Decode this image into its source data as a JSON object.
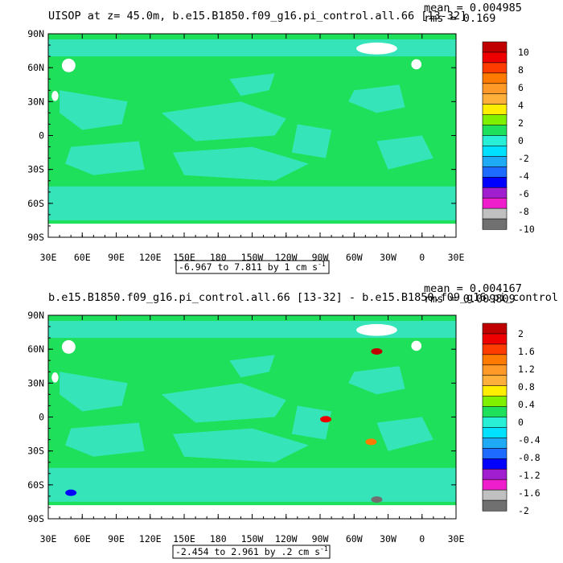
{
  "colors": {
    "land": "#ffffff",
    "ocean_base": "#1ee05a",
    "cool_patch": "#37e6c3",
    "palette": [
      "#707070",
      "#c0c0c0",
      "#ee1ecc",
      "#a01ed0",
      "#0000ff",
      "#1e6cff",
      "#1eaaf5",
      "#00e0ff",
      "#2aefd7",
      "#1ee05a",
      "#7ef000",
      "#ffee00",
      "#ffb03a",
      "#ff9928",
      "#ff7a00",
      "#ff3c00",
      "#ee0000",
      "#c00000"
    ]
  },
  "chart_data": [
    {
      "type": "heatmap",
      "title": "UISOP at z=  45.0m, b.e15.B1850.f09_g16.pi_control.all.66 [13-32]",
      "stats": [
        "mean = 0.004985",
        "rms = 0.169"
      ],
      "y_tick_labels": [
        "90N",
        "60N",
        "30N",
        "0",
        "30S",
        "60S",
        "90S"
      ],
      "x_tick_labels": [
        "30E",
        "60E",
        "90E",
        "120E",
        "150E",
        "180",
        "150W",
        "120W",
        "90W",
        "60W",
        "30W",
        "0",
        "30E"
      ],
      "range_text": "-6.967 to 7.811 by 1 cm s",
      "range_sup": "-1",
      "colorbar_labels": [
        "10",
        "8",
        "6",
        "4",
        "2",
        "0",
        "-2",
        "-4",
        "-6",
        "-8",
        "-10"
      ],
      "value_range": [
        -10,
        10
      ],
      "hotspots": []
    },
    {
      "type": "heatmap",
      "title": "b.e15.B1850.f09_g16.pi_control.all.66 [13-32] - b.e15.B1850.f09_g16.pi_control",
      "stats": [
        "mean = 0.004167",
        "rms = 0.009809"
      ],
      "y_tick_labels": [
        "90N",
        "60N",
        "30N",
        "0",
        "30S",
        "60S",
        "90S"
      ],
      "x_tick_labels": [
        "30E",
        "60E",
        "90E",
        "120E",
        "150E",
        "180",
        "150W",
        "120W",
        "90W",
        "60W",
        "30W",
        "0",
        "30E"
      ],
      "range_text": "-2.454 to 2.961 by .2 cm s",
      "range_sup": "-1",
      "colorbar_labels": [
        "2",
        "1.6",
        "1.2",
        "0.8",
        "0.4",
        "0",
        "-0.4",
        "-0.8",
        "-1.2",
        "-1.6",
        "-2"
      ],
      "value_range": [
        -2,
        2
      ],
      "hotspots": [
        {
          "name": "labrador-sea-anomaly",
          "lon": -40,
          "lat": 58,
          "value": 2.6
        },
        {
          "name": "peru-coast-anomaly",
          "lon": -85,
          "lat": -2,
          "value": 1.7
        },
        {
          "name": "brazil-shelf-anomaly",
          "lon": -45,
          "lat": -22,
          "value": 1.2
        },
        {
          "name": "weddell-anomaly",
          "lon": -40,
          "lat": -73,
          "value": -1.8
        },
        {
          "name": "indian-sector-anomaly",
          "lon": 50,
          "lat": -67,
          "value": -0.9
        }
      ]
    }
  ]
}
